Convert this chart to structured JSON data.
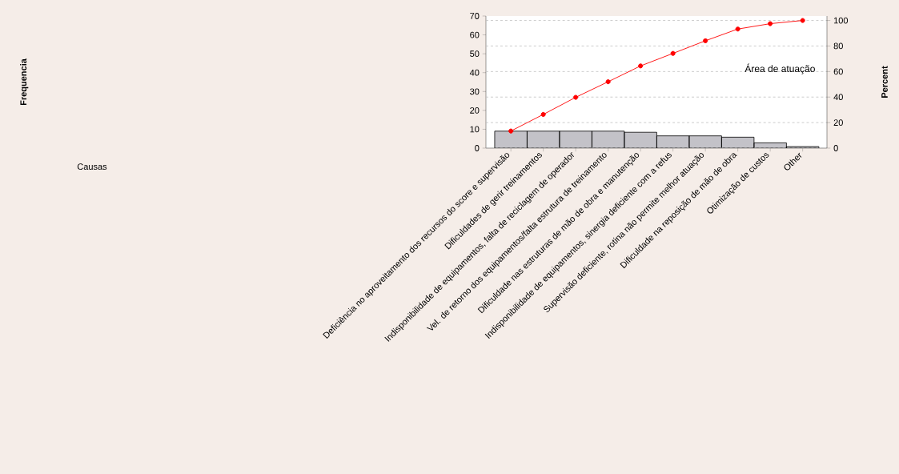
{
  "chart_data": {
    "type": "bar",
    "y2label": "Percent",
    "annotations": [
      "Área de atuação",
      "Frequencia",
      "Causas"
    ],
    "categories": [
      "Deficiência no aproveitamento dos recursos do score e supervisão",
      "Dificuldades de gerir treinamentos",
      "Indisponibilidade de equipamentos, falta de reciclagem de operador",
      "Vel. de retorno dos equipamentos/falta estrutura de treinamento",
      "Dificuldade nas estruturas de mão de obra e manutenção",
      "Indisponibilidade de equipamentos, sinergia deficiente com a refus",
      "Supervisão deficiente, rotina não permite melhor atuação",
      "Dificuldade na reposição de mão de obra",
      "Otimização de custos",
      "Other"
    ],
    "series": [
      {
        "type": "bar",
        "color": "#c3c2c8",
        "values": [
          9,
          9,
          9,
          9,
          8.4,
          6.5,
          6.5,
          5.8,
          2.8,
          0.8
        ]
      },
      {
        "type": "line",
        "axis": "y2",
        "color": "#ff0000",
        "marker": "circle",
        "line_style": "solid",
        "values": [
          13.4,
          26.4,
          39.8,
          52.0,
          64.4,
          74.2,
          84.1,
          93.3,
          97.5,
          100
        ]
      }
    ],
    "ylim": [
      0,
      70
    ],
    "yticks": [
      0,
      10,
      20,
      30,
      40,
      50,
      60,
      70
    ],
    "y2lim": [
      0,
      103.5
    ],
    "y2ticks": [
      0,
      20,
      40,
      60,
      80,
      100
    ],
    "grid": "y2"
  }
}
